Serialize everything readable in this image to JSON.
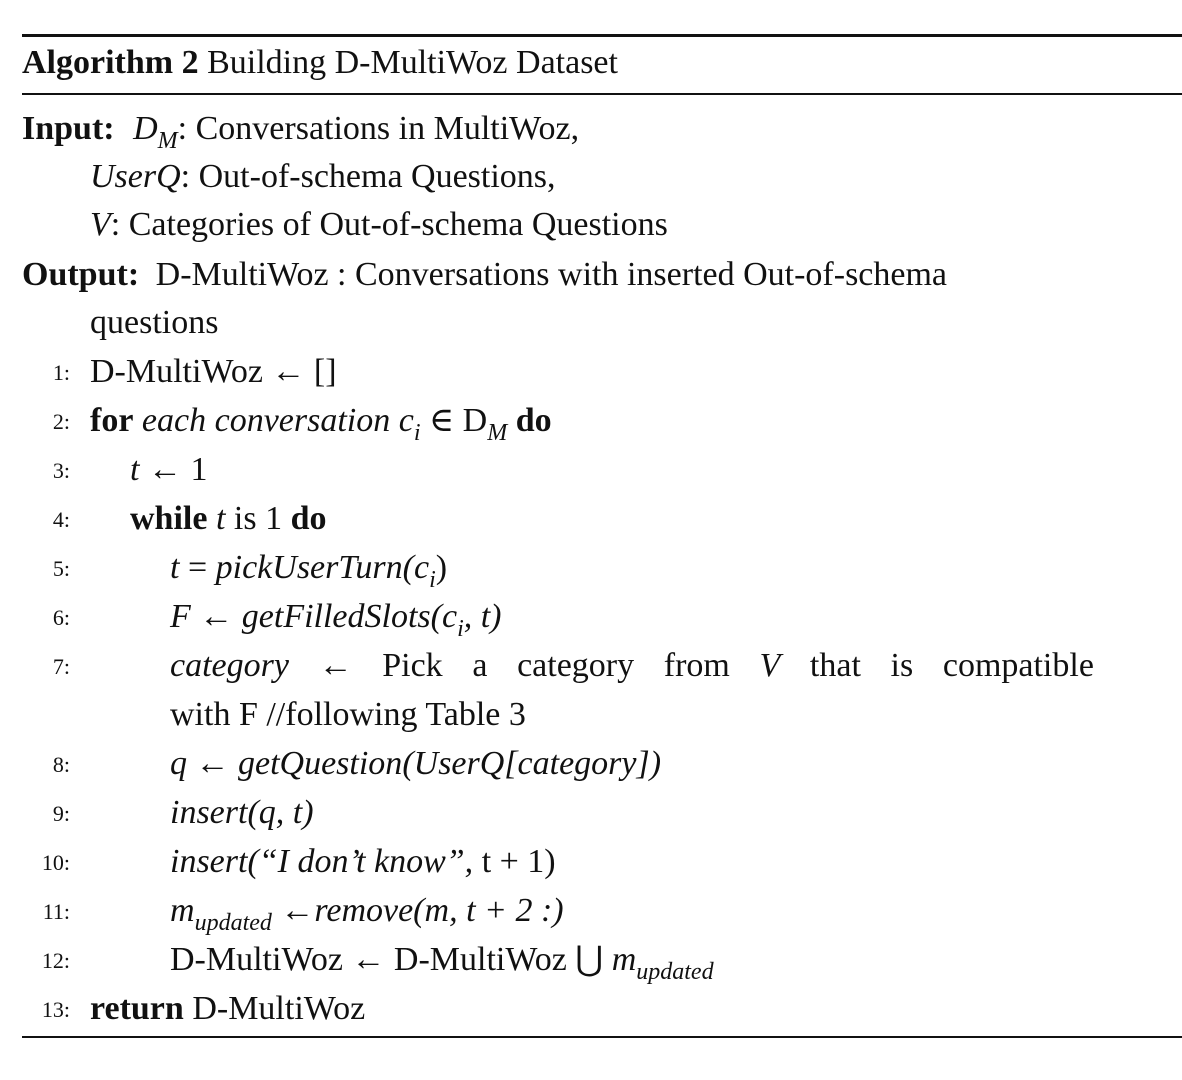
{
  "algorithm": {
    "label": "Algorithm 2",
    "title": "Building D-MultiWoz Dataset"
  },
  "input": {
    "keyword": "Input:",
    "items": [
      {
        "sym": "D",
        "sub": "M",
        "desc": ": Conversations in MultiWoz,"
      },
      {
        "sym": "UserQ",
        "desc": ": Out-of-schema Questions,"
      },
      {
        "sym": "V",
        "desc": ": Categories of Out-of-schema Questions"
      }
    ]
  },
  "output": {
    "keyword": "Output:",
    "line1": "D-MultiWoz : Conversations with inserted Out-of-schema",
    "line2": "questions"
  },
  "steps": [
    {
      "n": "1:",
      "parts": [
        "D-MultiWoz ← []"
      ]
    },
    {
      "n": "2:",
      "kw": "for",
      "it": "each conversation c",
      "sub": "i",
      "rest": " ∈ D",
      "sub2": "M",
      "kw2": "do"
    },
    {
      "n": "3:",
      "it": "t",
      "rest": " ← 1"
    },
    {
      "n": "4:",
      "kw": "while",
      "it": "t",
      "rest": " is 1 ",
      "kw2": "do"
    },
    {
      "n": "5:",
      "it": "t",
      "rest": " = ",
      "fn": "pickUserTurn",
      "arg": "(c",
      "sub": "i",
      "close": ")"
    },
    {
      "n": "6:",
      "it": "F",
      "rest": " ← ",
      "fn": "getFilledSlots",
      "arg": "(c",
      "sub": "i",
      "close": ", t)"
    },
    {
      "n": "7:",
      "line1": [
        "category",
        "←",
        "Pick",
        "a",
        "category",
        "from",
        "V",
        "that",
        "is",
        "compatible"
      ],
      "line2": "with F //following Table 3"
    },
    {
      "n": "8:",
      "it": "q",
      "rest": " ← ",
      "fn": "getQuestion",
      "arg": "(UserQ[category])"
    },
    {
      "n": "9:",
      "fn": "insert",
      "arg": "(q, t)"
    },
    {
      "n": "10:",
      "fn": "insert",
      "arg": "(“I don’t know”, ",
      "close": "t + 1)"
    },
    {
      "n": "11:",
      "it": "m",
      "sub": "updated",
      "rest": " ←",
      "fn": "remove(m, t + 2 :)"
    },
    {
      "n": "12:",
      "text": "D-MultiWoz ← D-MultiWoz ⋃ ",
      "it": "m",
      "sub": "updated"
    },
    {
      "n": "13:",
      "kw": "return",
      "text": " D-MultiWoz"
    }
  ]
}
